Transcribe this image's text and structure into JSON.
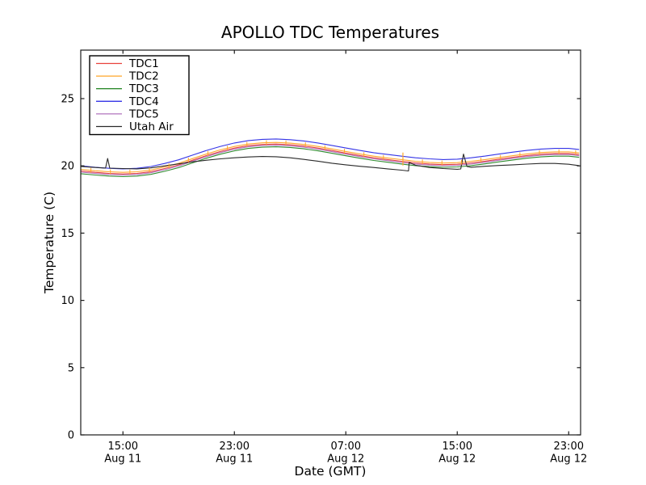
{
  "title": "APOLLO TDC Temperatures",
  "axes": {
    "xlabel": "Date (GMT)",
    "ylabel": "Temperature (C)",
    "y_ticks": [
      0,
      5,
      10,
      15,
      20,
      25
    ],
    "x_ticks": [
      {
        "hour": 3,
        "time": "15:00",
        "date": "Aug 11"
      },
      {
        "hour": 11,
        "time": "23:00",
        "date": "Aug 11"
      },
      {
        "hour": 19,
        "time": "07:00",
        "date": "Aug 12"
      },
      {
        "hour": 27,
        "time": "15:00",
        "date": "Aug 12"
      },
      {
        "hour": 35,
        "time": "23:00",
        "date": "Aug 12"
      }
    ]
  },
  "legend": {
    "entries": [
      {
        "label": "TDC1",
        "color": "#e8413c"
      },
      {
        "label": "TDC2",
        "color": "#ffa528"
      },
      {
        "label": "TDC3",
        "color": "#2e8b2e"
      },
      {
        "label": "TDC4",
        "color": "#3535e6"
      },
      {
        "label": "TDC5",
        "color": "#b173bd"
      },
      {
        "label": "Utah Air",
        "color": "#2a2a2a"
      }
    ]
  },
  "chart_data": {
    "type": "line",
    "title": "APOLLO TDC Temperatures",
    "xlabel": "Date (GMT)",
    "ylabel": "Temperature (C)",
    "ylim": [
      0,
      28.6
    ],
    "grid": false,
    "legend_position": "upper left",
    "x_unit": "hours since Aug 11 12:00 GMT",
    "xlim_hours": [
      0,
      35.87
    ],
    "t_hours": [
      0,
      1,
      2,
      3,
      4,
      5,
      6,
      7,
      8,
      9,
      10,
      11,
      12,
      13,
      14,
      15,
      16,
      17,
      18,
      19,
      20,
      21,
      22,
      23,
      24,
      25,
      26,
      27,
      28,
      29,
      30,
      31,
      32,
      33,
      34,
      35,
      35.75
    ],
    "series": [
      {
        "name": "TDC1",
        "color": "#e8413c",
        "values": [
          19.62,
          19.52,
          19.44,
          19.4,
          19.44,
          19.57,
          19.8,
          20.07,
          20.42,
          20.77,
          21.07,
          21.32,
          21.5,
          21.59,
          21.62,
          21.57,
          21.47,
          21.32,
          21.14,
          20.95,
          20.77,
          20.6,
          20.47,
          20.34,
          20.22,
          20.14,
          20.09,
          20.12,
          20.22,
          20.35,
          20.5,
          20.64,
          20.77,
          20.87,
          20.92,
          20.92,
          20.84
        ]
      },
      {
        "name": "TDC2",
        "color": "#ffa528",
        "marker": "vertical-tick",
        "values": [
          19.74,
          19.64,
          19.56,
          19.52,
          19.56,
          19.69,
          19.92,
          20.19,
          20.54,
          20.89,
          21.19,
          21.44,
          21.62,
          21.71,
          21.74,
          21.69,
          21.59,
          21.44,
          21.26,
          21.07,
          20.89,
          20.72,
          20.59,
          20.46,
          20.34,
          20.26,
          20.21,
          20.24,
          20.34,
          20.47,
          20.62,
          20.76,
          20.89,
          20.99,
          21.04,
          21.04,
          20.96
        ]
      },
      {
        "name": "TDC3",
        "color": "#2e8b2e",
        "values": [
          19.42,
          19.32,
          19.24,
          19.2,
          19.24,
          19.37,
          19.6,
          19.87,
          20.22,
          20.57,
          20.87,
          21.12,
          21.3,
          21.39,
          21.42,
          21.37,
          21.27,
          21.12,
          20.94,
          20.75,
          20.57,
          20.4,
          20.27,
          20.14,
          20.02,
          19.94,
          19.89,
          19.92,
          20.02,
          20.15,
          20.3,
          20.44,
          20.57,
          20.67,
          20.72,
          20.72,
          20.64
        ]
      },
      {
        "name": "TDC4",
        "color": "#3535e6",
        "values": [
          20.0,
          19.9,
          19.82,
          19.78,
          19.82,
          19.95,
          20.18,
          20.45,
          20.8,
          21.15,
          21.45,
          21.7,
          21.88,
          21.97,
          22.0,
          21.95,
          21.85,
          21.7,
          21.52,
          21.33,
          21.15,
          20.98,
          20.85,
          20.72,
          20.6,
          20.52,
          20.47,
          20.5,
          20.6,
          20.73,
          20.88,
          21.02,
          21.15,
          21.25,
          21.3,
          21.3,
          21.22
        ]
      },
      {
        "name": "TDC5",
        "color": "#b173bd",
        "values": [
          19.54,
          19.44,
          19.36,
          19.32,
          19.36,
          19.49,
          19.72,
          19.99,
          20.34,
          20.69,
          20.99,
          21.24,
          21.42,
          21.51,
          21.54,
          21.49,
          21.39,
          21.24,
          21.06,
          20.87,
          20.69,
          20.52,
          20.39,
          20.26,
          20.14,
          20.06,
          20.01,
          20.04,
          20.14,
          20.27,
          20.42,
          20.56,
          20.69,
          20.79,
          20.84,
          20.84,
          20.76
        ]
      },
      {
        "name": "Utah Air",
        "color": "#2a2a2a",
        "t_hours": [
          0,
          1,
          1.75,
          1.9,
          2.05,
          3,
          4,
          5,
          6,
          7,
          8,
          9,
          10,
          11,
          12,
          13,
          14,
          15,
          16,
          17,
          18,
          19,
          20,
          21,
          22,
          23,
          23.5,
          23.55,
          24,
          25,
          26,
          27,
          27.25,
          27.45,
          27.7,
          28,
          29,
          30,
          31,
          32,
          33,
          34,
          35,
          35.75
        ],
        "values": [
          19.95,
          19.88,
          19.83,
          20.55,
          19.83,
          19.8,
          19.78,
          19.85,
          20.0,
          20.15,
          20.3,
          20.42,
          20.52,
          20.6,
          20.66,
          20.7,
          20.68,
          20.6,
          20.48,
          20.35,
          20.2,
          20.08,
          19.97,
          19.88,
          19.78,
          19.68,
          19.62,
          20.25,
          20.05,
          19.88,
          19.8,
          19.75,
          19.77,
          20.88,
          19.95,
          19.9,
          19.97,
          20.03,
          20.08,
          20.13,
          20.18,
          20.18,
          20.12,
          20.02
        ]
      }
    ],
    "tdc2_marker_hours": [
      0.7,
      2.1,
      3.5,
      4.9,
      6.3,
      7.7,
      9.1,
      10.5,
      11.9,
      13.3,
      14.7,
      16.1,
      17.5,
      18.9,
      20.3,
      21.7,
      24.5,
      25.9,
      27.3,
      28.7,
      30.1,
      31.5,
      32.9,
      34.3,
      35.5
    ],
    "tdc2_tall_marker_hour": 23.1
  }
}
